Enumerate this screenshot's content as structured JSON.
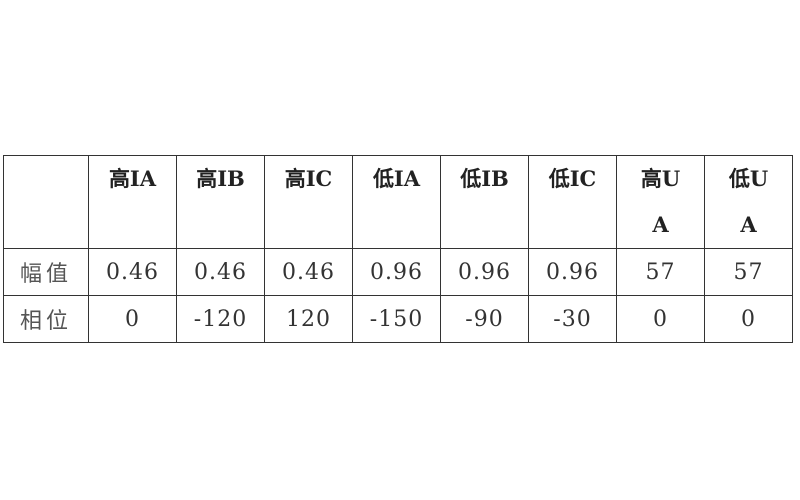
{
  "table": {
    "headers": [
      "",
      "高IA",
      "高IB",
      "高IC",
      "低IA",
      "低IB",
      "低IC",
      "高UA",
      "低UA"
    ],
    "rows": [
      {
        "label": "幅值",
        "values": [
          "0.46",
          "0.46",
          "0.46",
          "0.96",
          "0.96",
          "0.96",
          "57",
          "57"
        ]
      },
      {
        "label": "相位",
        "values": [
          "0",
          "-120",
          "120",
          "-150",
          "-90",
          "-30",
          "0",
          "0"
        ]
      }
    ]
  }
}
